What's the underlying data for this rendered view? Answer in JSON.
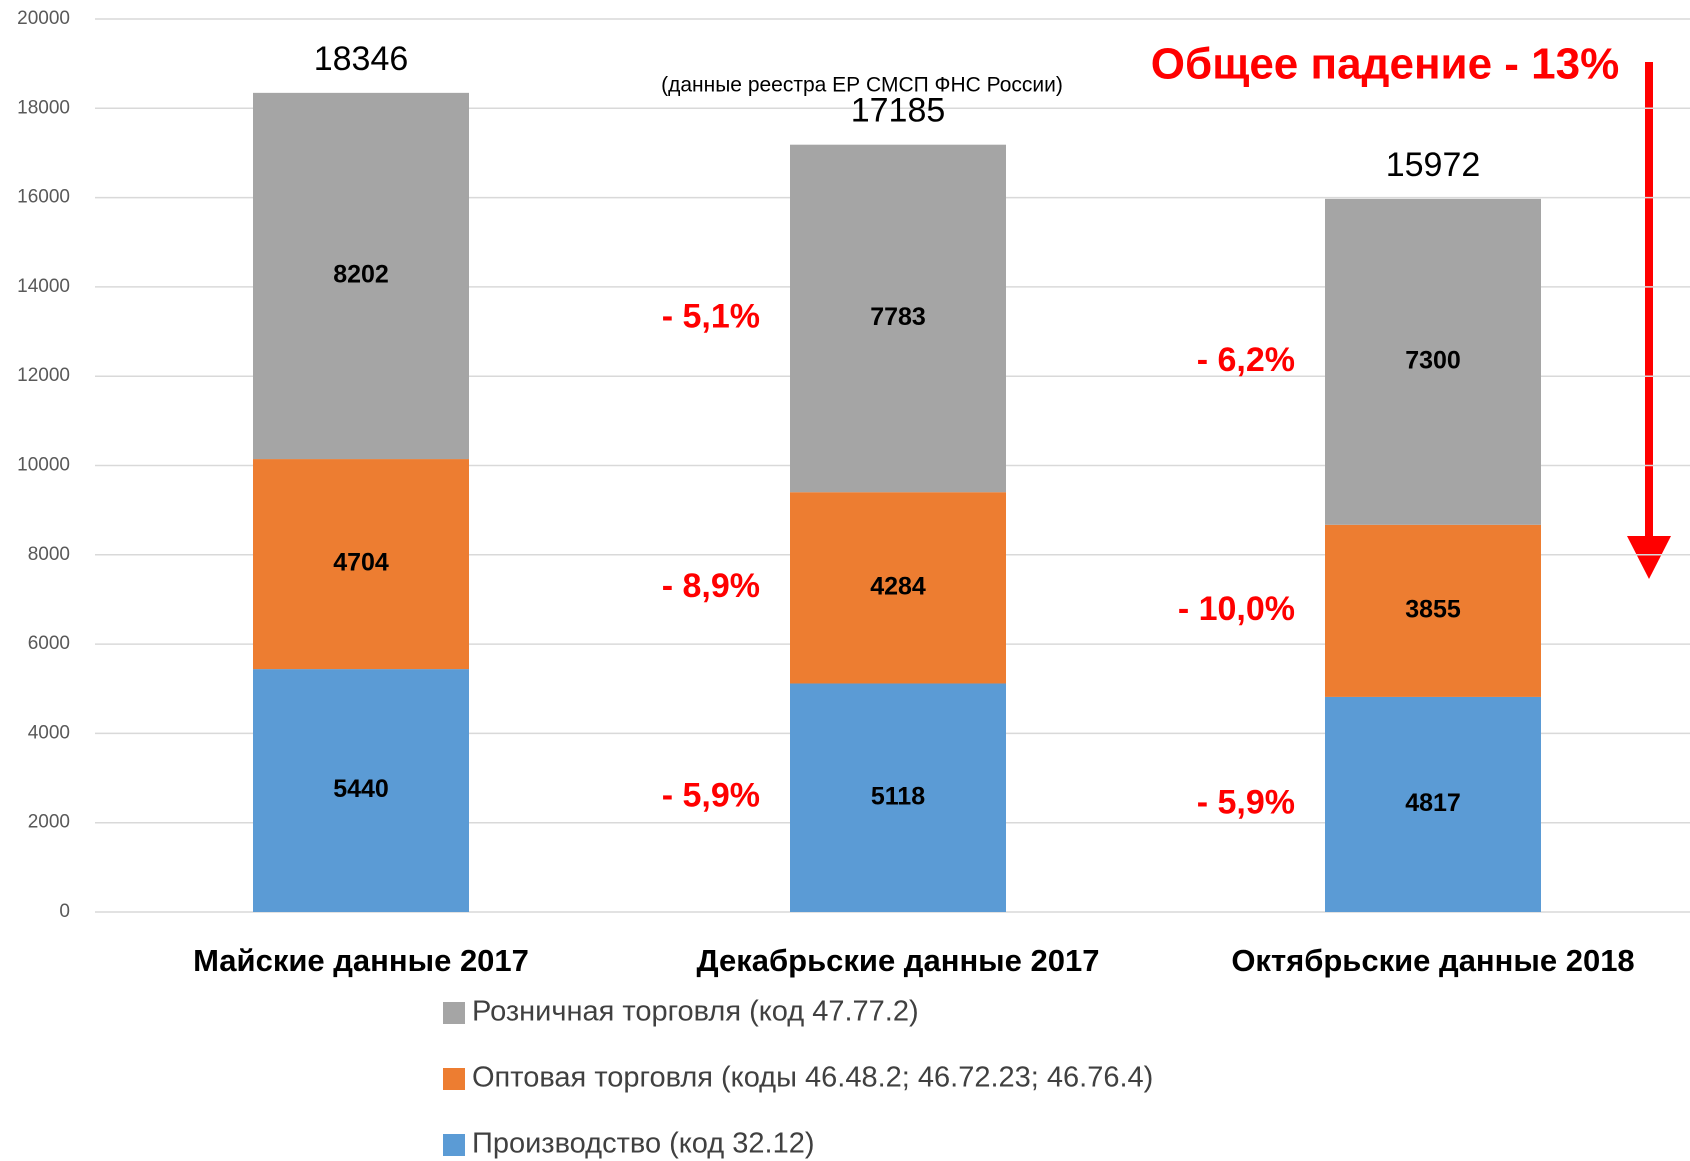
{
  "chart_data": {
    "type": "stacked_bar",
    "subtitle": "(данные реестра ЕР СМСП ФНС России)",
    "annotation": "Общее падение - 13%",
    "categories": [
      "Майские данные 2017",
      "Декабрьские данные 2017",
      "Октябрьские данные 2018"
    ],
    "series": [
      {
        "name": "Производство (код 32.12)",
        "color": "#5b9bd5",
        "values": [
          5440,
          5118,
          4817
        ],
        "change_labels": [
          "- 5,9%",
          "- 5,9%"
        ]
      },
      {
        "name": "Оптовая торговля (коды 46.48.2; 46.72.23; 46.76.4)",
        "color": "#ed7d31",
        "values": [
          4704,
          4284,
          3855
        ],
        "change_labels": [
          "- 8,9%",
          "- 10,0%"
        ]
      },
      {
        "name": "Розничная торговля (код 47.77.2)",
        "color": "#a5a5a5",
        "values": [
          8202,
          7783,
          7300
        ],
        "change_labels": [
          "- 5,1%",
          "- 6,2%"
        ]
      }
    ],
    "totals": [
      18346,
      17185,
      15972
    ],
    "ylim": [
      0,
      20000
    ],
    "yticks": [
      0,
      2000,
      4000,
      6000,
      8000,
      10000,
      12000,
      14000,
      16000,
      18000,
      20000
    ],
    "grid": true,
    "legend": "bottom"
  }
}
